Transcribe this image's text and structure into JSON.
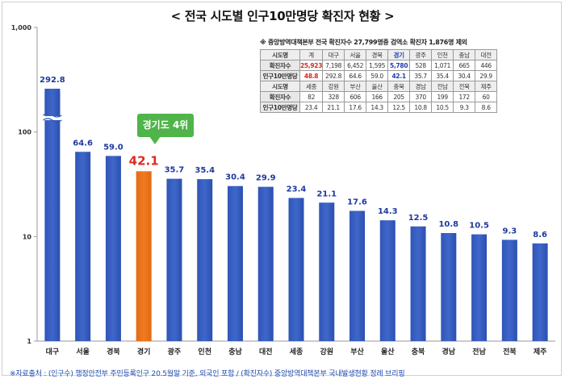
{
  "title": "< 전국 시도별 인구10만명당 확진자 현황 >",
  "chart_data": {
    "type": "bar",
    "yscale": "log",
    "ylim": [
      1,
      1000
    ],
    "yticks": [
      "1",
      "10",
      "100",
      "1,000"
    ],
    "categories": [
      "대구",
      "서울",
      "경북",
      "경기",
      "광주",
      "인천",
      "충남",
      "대전",
      "세종",
      "강원",
      "부산",
      "울산",
      "충북",
      "경남",
      "전남",
      "전북",
      "제주"
    ],
    "values": [
      292.8,
      64.6,
      59.0,
      42.1,
      35.7,
      35.4,
      30.4,
      29.9,
      23.4,
      21.1,
      17.6,
      14.3,
      12.5,
      10.8,
      10.5,
      9.3,
      8.6
    ],
    "value_labels": [
      "292.8",
      "64.6",
      "59.0",
      "42.1",
      "35.7",
      "35.4",
      "30.4",
      "29.9",
      "23.4",
      "21.1",
      "17.6",
      "14.3",
      "12.5",
      "10.8",
      "10.5",
      "9.3",
      "8.6"
    ],
    "highlight_category": "경기",
    "axis_break_on": "대구",
    "grid": false,
    "colors": {
      "bar": "#3f67c9",
      "highlight": "#f07a22",
      "label": "#1e3a9e",
      "highlight_label": "#e02a22"
    }
  },
  "callout": "경기도 4위",
  "table": {
    "title": "※ 중앙방역대책본부 전국 확진자수 27,799명중 검역소 확진자 1,876명 제외",
    "rows": [
      {
        "type": "name",
        "cells": [
          "시도명",
          "계",
          "대구",
          "서울",
          "경북",
          "경기",
          "광주",
          "인천",
          "충남",
          "대전"
        ]
      },
      {
        "type": "val",
        "cells": [
          "확진자수",
          "25,923",
          "7,198",
          "6,452",
          "1,595",
          "5,780",
          "528",
          "1,071",
          "665",
          "446"
        ]
      },
      {
        "type": "val",
        "cells": [
          "인구10만명당",
          "48.8",
          "292.8",
          "64.6",
          "59.0",
          "42.1",
          "35.7",
          "35.4",
          "30.4",
          "29.9"
        ]
      },
      {
        "type": "name",
        "cells": [
          "시도명",
          "세종",
          "강원",
          "부산",
          "울산",
          "충북",
          "경남",
          "전남",
          "전북",
          "제주"
        ]
      },
      {
        "type": "val",
        "cells": [
          "확진자수",
          "82",
          "328",
          "606",
          "166",
          "205",
          "370",
          "199",
          "172",
          "60"
        ]
      },
      {
        "type": "val",
        "cells": [
          "인구10만명당",
          "23.4",
          "21.1",
          "17.6",
          "14.3",
          "12.5",
          "10.8",
          "10.5",
          "9.3",
          "8.6"
        ]
      }
    ]
  },
  "footnote": "※자료출처 : (인구수) 행정안전부 주민등록인구 20.5월말 기준, 외국인 포함 / (확진자수) 중앙방역대책본부 국내발생현황 정례 브리핑"
}
